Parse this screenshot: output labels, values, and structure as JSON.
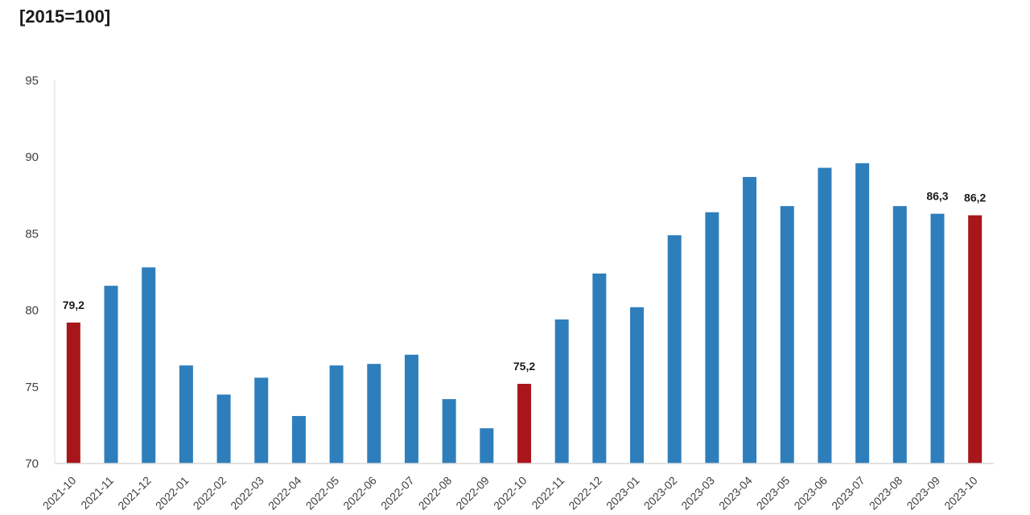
{
  "chart_data": {
    "type": "bar",
    "title": "",
    "subtitle": "[2015=100]",
    "xlabel": "",
    "ylabel": "",
    "ylim": [
      70,
      95
    ],
    "yticks": [
      70,
      75,
      80,
      85,
      90,
      95
    ],
    "categories": [
      "2021-10",
      "2021-11",
      "2021-12",
      "2022-01",
      "2022-02",
      "2022-03",
      "2022-04",
      "2022-05",
      "2022-06",
      "2022-07",
      "2022-08",
      "2022-09",
      "2022-10",
      "2022-11",
      "2022-12",
      "2023-01",
      "2023-02",
      "2023-03",
      "2023-04",
      "2023-05",
      "2023-06",
      "2023-07",
      "2023-08",
      "2023-09",
      "2023-10"
    ],
    "values": [
      79.2,
      81.6,
      82.8,
      76.4,
      74.5,
      75.6,
      73.1,
      76.4,
      76.5,
      77.1,
      74.2,
      72.3,
      75.2,
      79.4,
      82.4,
      80.2,
      84.9,
      86.4,
      88.7,
      86.8,
      89.3,
      89.6,
      86.8,
      86.3,
      86.2
    ],
    "highlighted": [
      0,
      12,
      24
    ],
    "data_labels": {
      "0": "79,2",
      "12": "75,2",
      "23": "86,3",
      "24": "86,2"
    },
    "colors": {
      "default": "#2e7ebc",
      "highlight": "#a8151b",
      "axis": "#d9d9d9"
    },
    "grid": false,
    "legend": "none"
  }
}
